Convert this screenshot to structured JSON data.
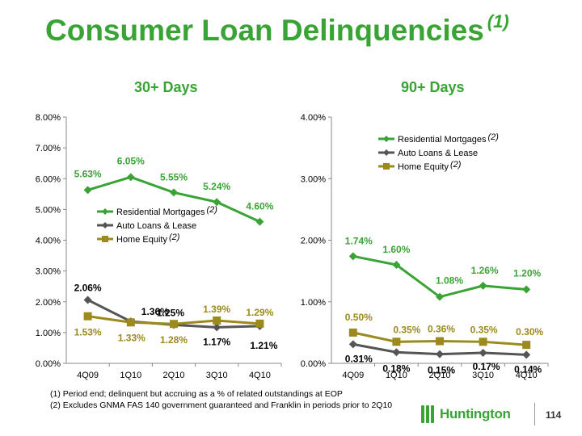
{
  "title": {
    "text": "Consumer Loan Delinquencies",
    "footnote_mark": "(1)"
  },
  "colors": {
    "green": "#3aa335",
    "gray": "#555555",
    "gold": "#9c8a1e"
  },
  "footnotes": [
    "(1)  Period end; delinquent but accruing as a % of related outstandings at EOP",
    "(2)  Excludes GNMA FAS 140 government guaranteed and Franklin in periods prior to 2Q10"
  ],
  "logo": {
    "icon": "huntington-logo-icon",
    "text": "Huntington"
  },
  "page_number": "114",
  "chart_data": [
    {
      "type": "line",
      "title": "30+ Days",
      "categories": [
        "4Q09",
        "1Q10",
        "2Q10",
        "3Q10",
        "4Q10"
      ],
      "ylim": [
        0,
        8
      ],
      "yticks": [
        "0.00%",
        "1.00%",
        "2.00%",
        "3.00%",
        "4.00%",
        "5.00%",
        "6.00%",
        "7.00%",
        "8.00%"
      ],
      "legend_position": "center-right",
      "series": [
        {
          "name": "Residential Mortgages",
          "name_note": "(2)",
          "color": "#3aa335",
          "marker": "diamond",
          "values": [
            5.63,
            6.05,
            5.55,
            5.24,
            4.6
          ],
          "labels": [
            "5.63%",
            "6.05%",
            "5.55%",
            "5.24%",
            "4.60%"
          ]
        },
        {
          "name": "Auto Loans & Lease",
          "name_note": "",
          "color": "#555555",
          "marker": "diamond",
          "values": [
            2.06,
            1.36,
            1.25,
            1.17,
            1.21
          ],
          "labels": [
            "2.06%",
            "1.36%",
            "1.25%",
            "1.17%",
            "1.21%"
          ]
        },
        {
          "name": "Home Equity",
          "name_note": "(2)",
          "color": "#9c8a1e",
          "marker": "square",
          "values": [
            1.53,
            1.33,
            1.28,
            1.39,
            1.29
          ],
          "labels": [
            "1.53%",
            "1.33%",
            "1.28%",
            "1.39%",
            "1.29%"
          ]
        }
      ]
    },
    {
      "type": "line",
      "title": "90+ Days",
      "categories": [
        "4Q09",
        "1Q10",
        "2Q10",
        "3Q10",
        "4Q10"
      ],
      "ylim": [
        0,
        4
      ],
      "yticks": [
        "0.00%",
        "1.00%",
        "2.00%",
        "3.00%",
        "4.00%"
      ],
      "legend_position": "top-right",
      "series": [
        {
          "name": "Residential Mortgages",
          "name_note": "(2)",
          "color": "#3aa335",
          "marker": "diamond",
          "values": [
            1.74,
            1.6,
            1.08,
            1.26,
            1.2
          ],
          "labels": [
            "1.74%",
            "1.60%",
            "1.08%",
            "1.26%",
            "1.20%"
          ]
        },
        {
          "name": "Auto Loans & Lease",
          "name_note": "",
          "color": "#555555",
          "marker": "diamond",
          "values": [
            0.31,
            0.18,
            0.15,
            0.17,
            0.14
          ],
          "labels": [
            "0.31%",
            "0.18%",
            "0.15%",
            "0.17%",
            "0.14%"
          ]
        },
        {
          "name": "Home Equity",
          "name_note": "(2)",
          "color": "#9c8a1e",
          "marker": "square",
          "values": [
            0.5,
            0.35,
            0.36,
            0.35,
            0.3
          ],
          "labels": [
            "0.50%",
            "0.35%",
            "0.36%",
            "0.35%",
            "0.30%"
          ]
        }
      ]
    }
  ]
}
